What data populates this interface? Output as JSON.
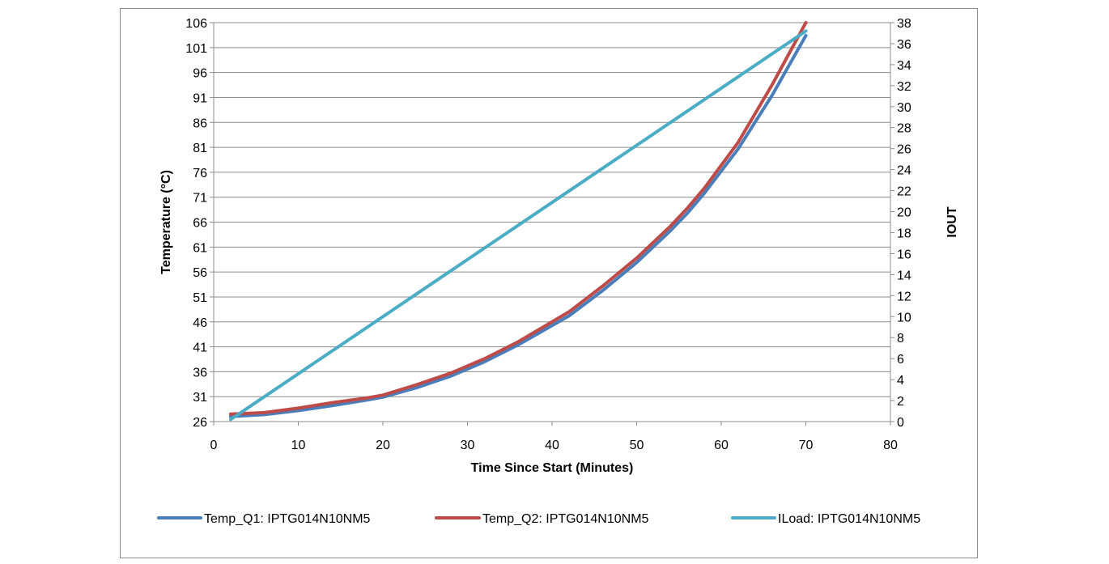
{
  "chart_data": {
    "type": "line",
    "xlabel": "Time Since Start (Minutes)",
    "ylabel": "Temperature (°C)",
    "y2label": "IOUT",
    "xlim": [
      0,
      80
    ],
    "ylim": [
      26,
      106
    ],
    "y2lim": [
      0,
      38
    ],
    "x_ticks": [
      0,
      10,
      20,
      30,
      40,
      50,
      60,
      70,
      80
    ],
    "y_ticks": [
      26,
      31,
      36,
      41,
      46,
      51,
      56,
      61,
      66,
      71,
      76,
      81,
      86,
      91,
      96,
      101,
      106
    ],
    "y2_ticks": [
      0,
      2,
      4,
      6,
      8,
      10,
      12,
      14,
      16,
      18,
      20,
      22,
      24,
      26,
      28,
      30,
      32,
      34,
      36,
      38
    ],
    "grid": "horizontal",
    "legend": "bottom",
    "series": [
      {
        "name": "Temp_Q1: IPTG014N10NM5",
        "axis": "left",
        "color": "#4a7ebb",
        "x": [
          2,
          6,
          10,
          14,
          18,
          20,
          24,
          28,
          32,
          36,
          42,
          46,
          50,
          54,
          56,
          58,
          62,
          66,
          70
        ],
        "y": [
          27.0,
          27.4,
          28.2,
          29.2,
          30.3,
          30.9,
          32.8,
          35.1,
          38.0,
          41.4,
          47.2,
          52.3,
          57.9,
          64.3,
          67.8,
          71.8,
          80.7,
          91.4,
          103.4
        ]
      },
      {
        "name": "Temp_Q2: IPTG014N10NM5",
        "axis": "left",
        "color": "#be4b48",
        "x": [
          2,
          6,
          10,
          14,
          18,
          20,
          24,
          28,
          32,
          36,
          42,
          46,
          50,
          54,
          56,
          58,
          62,
          66,
          70
        ],
        "y": [
          27.5,
          27.8,
          28.7,
          29.8,
          30.7,
          31.3,
          33.4,
          35.7,
          38.6,
          42.0,
          48.0,
          53.2,
          58.8,
          65.2,
          68.8,
          72.8,
          82.0,
          93.5,
          106.0
        ]
      },
      {
        "name": "ILoad: IPTG014N10NM5",
        "axis": "right",
        "color": "#4bacc6",
        "x": [
          2,
          70
        ],
        "y": [
          0.2,
          37.2
        ]
      }
    ]
  }
}
